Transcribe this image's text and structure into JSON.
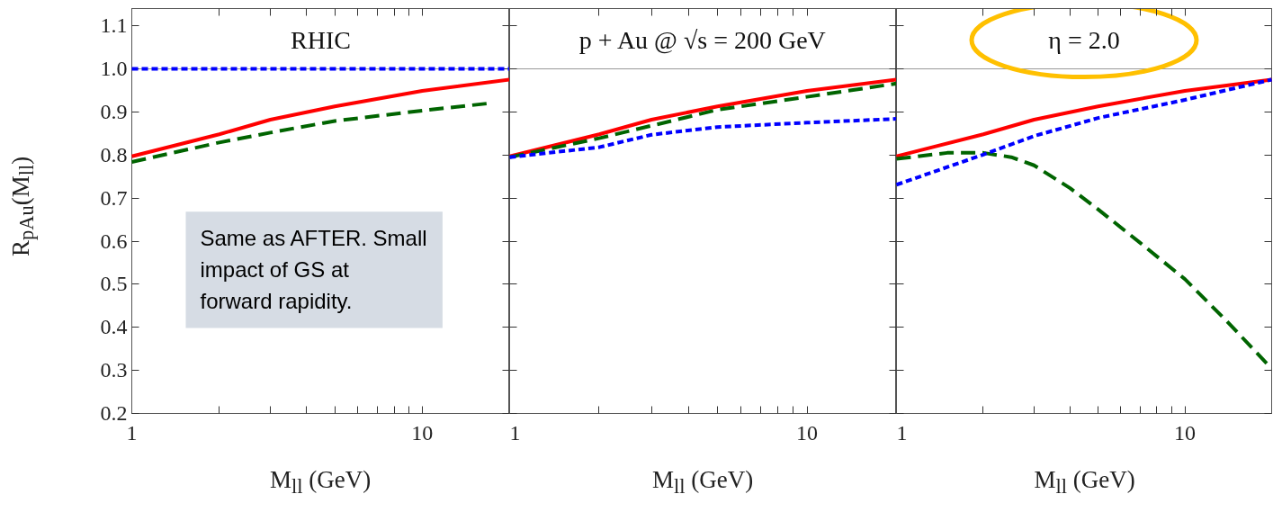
{
  "chart_data": [
    {
      "type": "line",
      "title": "RHIC",
      "xlabel": "M$_{ll}$ (GeV)",
      "ylabel": "R$_{pAu}$(M$_{ll}$)",
      "log": "x",
      "xlim": [
        1,
        20
      ],
      "ylim": [
        0.2,
        1.14
      ],
      "xticks": [
        1,
        {
          "value": 2,
          "label": null
        },
        {
          "value": 3,
          "label": null
        },
        {
          "value": 4,
          "label": null
        },
        {
          "value": 5,
          "label": null
        },
        {
          "value": 6,
          "label": null
        },
        {
          "value": 7,
          "label": null
        },
        {
          "value": 8,
          "label": null
        },
        {
          "value": 9,
          "label": null
        },
        10
      ],
      "yticks": [
        0.2,
        0.3,
        0.4,
        0.5,
        0.6,
        0.7,
        0.8,
        0.9,
        {
          "value": 1.0,
          "label": "1.0"
        },
        1.1
      ],
      "ref_lines": [
        {
          "axis": "y",
          "value": 1.0,
          "color": "#999999"
        }
      ],
      "annotations": [
        "Same as AFTER. Small impact of GS at forward rapidity."
      ],
      "x": [
        1,
        2,
        3,
        5,
        10,
        20
      ],
      "series": [
        {
          "color": "#ff0000",
          "line_style": "solid",
          "values": [
            0.797,
            0.848,
            0.882,
            0.913,
            0.949,
            0.975
          ]
        },
        {
          "color": "#006400",
          "line_style": "dashed",
          "x": [
            1,
            2,
            3,
            5,
            10,
            17
          ],
          "values": [
            0.784,
            0.829,
            0.852,
            0.879,
            0.903,
            0.92
          ]
        },
        {
          "color": "#0000ff",
          "line_style": "dotted",
          "values": [
            1.0,
            1.0,
            1.0,
            1.0,
            1.0,
            1.0
          ]
        }
      ]
    },
    {
      "type": "line",
      "title": "p + Au @ √s = 200 GeV",
      "xlabel": "M$_{ll}$ (GeV)",
      "log": "x",
      "xlim": [
        1,
        20
      ],
      "ylim": [
        0.2,
        1.14
      ],
      "tick_labels": "x",
      "xticks": [
        1,
        {
          "value": 2,
          "label": null
        },
        {
          "value": 3,
          "label": null
        },
        {
          "value": 4,
          "label": null
        },
        {
          "value": 5,
          "label": null
        },
        {
          "value": 6,
          "label": null
        },
        {
          "value": 7,
          "label": null
        },
        {
          "value": 8,
          "label": null
        },
        {
          "value": 9,
          "label": null
        },
        10
      ],
      "yticks": [
        0.2,
        0.3,
        0.4,
        0.5,
        0.6,
        0.7,
        0.8,
        0.9,
        1.0,
        1.1
      ],
      "ref_lines": [
        {
          "axis": "y",
          "value": 1.0,
          "color": "#999999"
        }
      ],
      "x": [
        1,
        2,
        3,
        5,
        10,
        20
      ],
      "series": [
        {
          "color": "#ff0000",
          "line_style": "solid",
          "values": [
            0.797,
            0.848,
            0.882,
            0.913,
            0.949,
            0.975
          ]
        },
        {
          "color": "#006400",
          "line_style": "dashed",
          "values": [
            0.795,
            0.839,
            0.868,
            0.905,
            0.935,
            0.966
          ]
        },
        {
          "color": "#0000ff",
          "line_style": "dotted",
          "values": [
            0.795,
            0.818,
            0.847,
            0.865,
            0.875,
            0.884
          ]
        }
      ]
    },
    {
      "type": "line",
      "title": "η = 2.0",
      "xlabel": "M$_{ll}$ (GeV)",
      "log": "x",
      "xlim": [
        1,
        20
      ],
      "ylim": [
        0.2,
        1.14
      ],
      "tick_labels": "x",
      "xticks": [
        1,
        {
          "value": 2,
          "label": null
        },
        {
          "value": 3,
          "label": null
        },
        {
          "value": 4,
          "label": null
        },
        {
          "value": 5,
          "label": null
        },
        {
          "value": 6,
          "label": null
        },
        {
          "value": 7,
          "label": null
        },
        {
          "value": 8,
          "label": null
        },
        {
          "value": 9,
          "label": null
        },
        10
      ],
      "yticks": [
        0.2,
        0.3,
        0.4,
        0.5,
        0.6,
        0.7,
        0.8,
        0.9,
        1.0,
        1.1
      ],
      "ref_lines": [
        {
          "axis": "y",
          "value": 1.0,
          "color": "#999999"
        }
      ],
      "x": [
        1,
        2,
        3,
        5,
        10,
        20
      ],
      "series": [
        {
          "color": "#ff0000",
          "line_style": "solid",
          "values": [
            0.797,
            0.848,
            0.882,
            0.913,
            0.949,
            0.975
          ]
        },
        {
          "color": "#006400",
          "line_style": "dashed",
          "x": [
            1,
            1.5,
            2,
            2.5,
            3,
            4,
            5,
            7,
            10,
            14,
            20
          ],
          "values": [
            0.791,
            0.805,
            0.805,
            0.795,
            0.776,
            0.723,
            0.674,
            0.596,
            0.512,
            0.414,
            0.304
          ]
        },
        {
          "color": "#0000ff",
          "line_style": "dotted",
          "values": [
            0.731,
            0.801,
            0.844,
            0.886,
            0.928,
            0.975
          ]
        }
      ]
    }
  ]
}
